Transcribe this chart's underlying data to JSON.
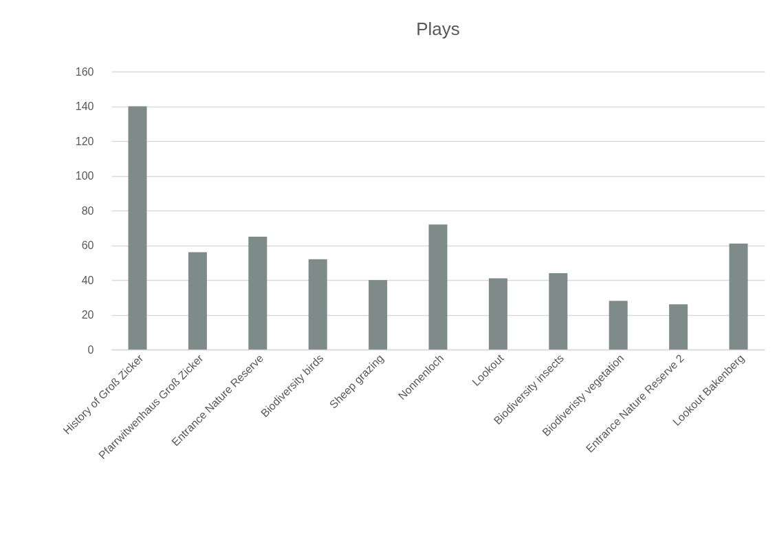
{
  "chart_data": {
    "type": "bar",
    "title": "Plays",
    "categories": [
      "History of Groß Zicker",
      "Pfarrwitwenhaus Groß Zicker",
      "Entrance Nature Reserve",
      "Biodiversity birds",
      "Sheep grazing",
      "Nonnenloch",
      "Lookout",
      "Biodiversity insects",
      "Biodiveristy vegetation",
      "Entrance Nature Reserve 2",
      "Lookout Bakenberg"
    ],
    "values": [
      140,
      56,
      65,
      52,
      40,
      72,
      41,
      44,
      28,
      26,
      61
    ],
    "color": "#7f8b89",
    "ylim": [
      0,
      160
    ],
    "yticks": [
      0,
      20,
      40,
      60,
      80,
      100,
      120,
      140,
      160
    ],
    "grid": "y"
  }
}
